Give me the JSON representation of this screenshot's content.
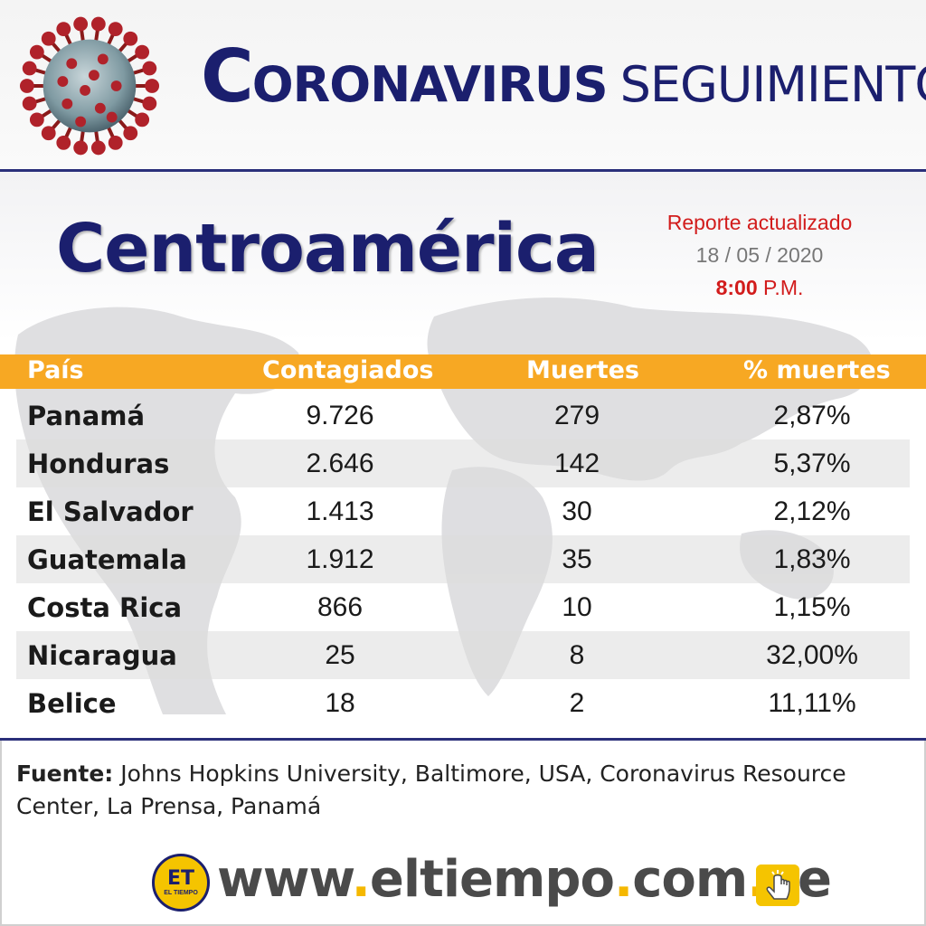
{
  "header": {
    "title_first": "C",
    "title_rest": "ORONAVIRUS",
    "title_second": "SEGUIMIENTO"
  },
  "region": "Centroamérica",
  "report": {
    "label": "Reporte actualizado",
    "date": "18 / 05 / 2020",
    "time_bold": "8:00",
    "time_suffix": "P.M."
  },
  "table": {
    "columns": [
      "País",
      "Contagiados",
      "Muertes",
      "% muertes"
    ],
    "rows": [
      {
        "pais": "Panamá",
        "contagiados": "9.726",
        "muertes": "279",
        "pct": "2,87%"
      },
      {
        "pais": "Honduras",
        "contagiados": "2.646",
        "muertes": "142",
        "pct": "5,37%"
      },
      {
        "pais": "El Salvador",
        "contagiados": "1.413",
        "muertes": "30",
        "pct": "2,12%"
      },
      {
        "pais": "Guatemala",
        "contagiados": "1.912",
        "muertes": "35",
        "pct": "1,83%"
      },
      {
        "pais": "Costa Rica",
        "contagiados": "866",
        "muertes": "10",
        "pct": "1,15%"
      },
      {
        "pais": "Nicaragua",
        "contagiados": "25",
        "muertes": "8",
        "pct": "32,00%"
      },
      {
        "pais": "Belice",
        "contagiados": "18",
        "muertes": "2",
        "pct": "11,11%"
      }
    ]
  },
  "source": {
    "label": "Fuente:",
    "text": "Johns Hopkins University, Baltimore, USA, Coronavirus Resource Center, La Prensa, Panamá"
  },
  "footer": {
    "logo_main": "ET",
    "logo_sub": "EL TIEMPO",
    "url_parts": [
      "www",
      ".",
      "eltiempo",
      ".",
      "com",
      ".",
      "ve"
    ]
  },
  "colors": {
    "navy": "#1b1f6e",
    "orange": "#f7a823",
    "red": "#d21c1c"
  }
}
